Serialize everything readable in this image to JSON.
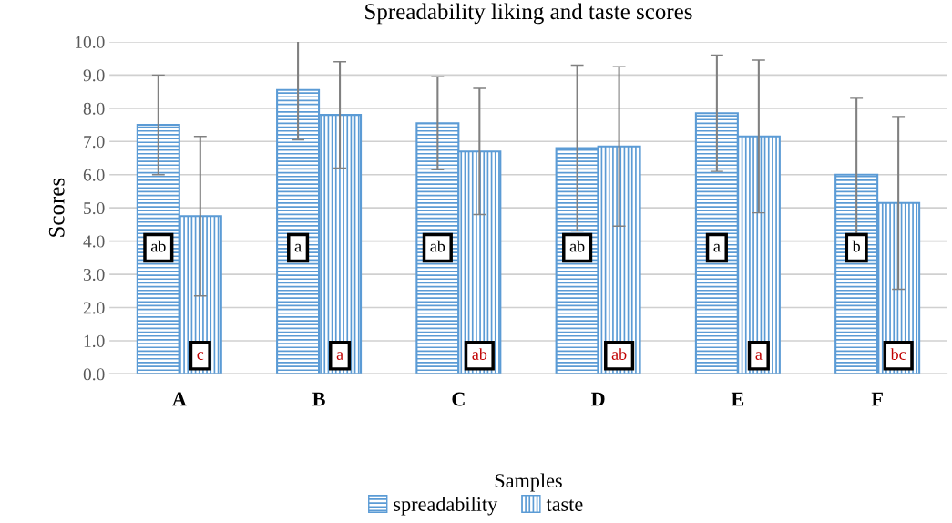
{
  "chart_data": {
    "type": "bar",
    "title": "Spreadability liking and taste scores",
    "xlabel": "Samples",
    "ylabel": "Scores",
    "categories": [
      "A",
      "B",
      "C",
      "D",
      "E",
      "F"
    ],
    "series": [
      {
        "name": "spreadability",
        "color": "#5b9bd5",
        "values": [
          7.5,
          8.55,
          7.55,
          6.8,
          7.85,
          6.0
        ],
        "errors": [
          1.5,
          1.5,
          1.4,
          2.5,
          1.75,
          2.3
        ],
        "value_labels": [
          "ab",
          "a",
          "ab",
          "ab",
          "a",
          "b"
        ]
      },
      {
        "name": "taste",
        "color": "#5b9bd5",
        "values": [
          4.75,
          7.8,
          6.7,
          6.85,
          7.15,
          5.15
        ],
        "errors": [
          2.4,
          1.6,
          1.9,
          2.4,
          2.3,
          2.6
        ],
        "value_labels": [
          "c",
          "a",
          "ab",
          "ab",
          "a",
          "bc"
        ]
      }
    ],
    "ylim": [
      0,
      10
    ],
    "yticks": [
      {
        "value": 0,
        "label": "0.0"
      },
      {
        "value": 1,
        "label": "1.0"
      },
      {
        "value": 2,
        "label": "2.0"
      },
      {
        "value": 3,
        "label": "3.0"
      },
      {
        "value": 4,
        "label": "4.0"
      },
      {
        "value": 5,
        "label": "5.0"
      },
      {
        "value": 6,
        "label": "6.0"
      },
      {
        "value": 7,
        "label": "7.0"
      },
      {
        "value": 8,
        "label": "8.0"
      },
      {
        "value": 9,
        "label": "9.0"
      },
      {
        "value": 10,
        "label": "10.0"
      }
    ],
    "grid": "y",
    "legend": "bottom"
  }
}
